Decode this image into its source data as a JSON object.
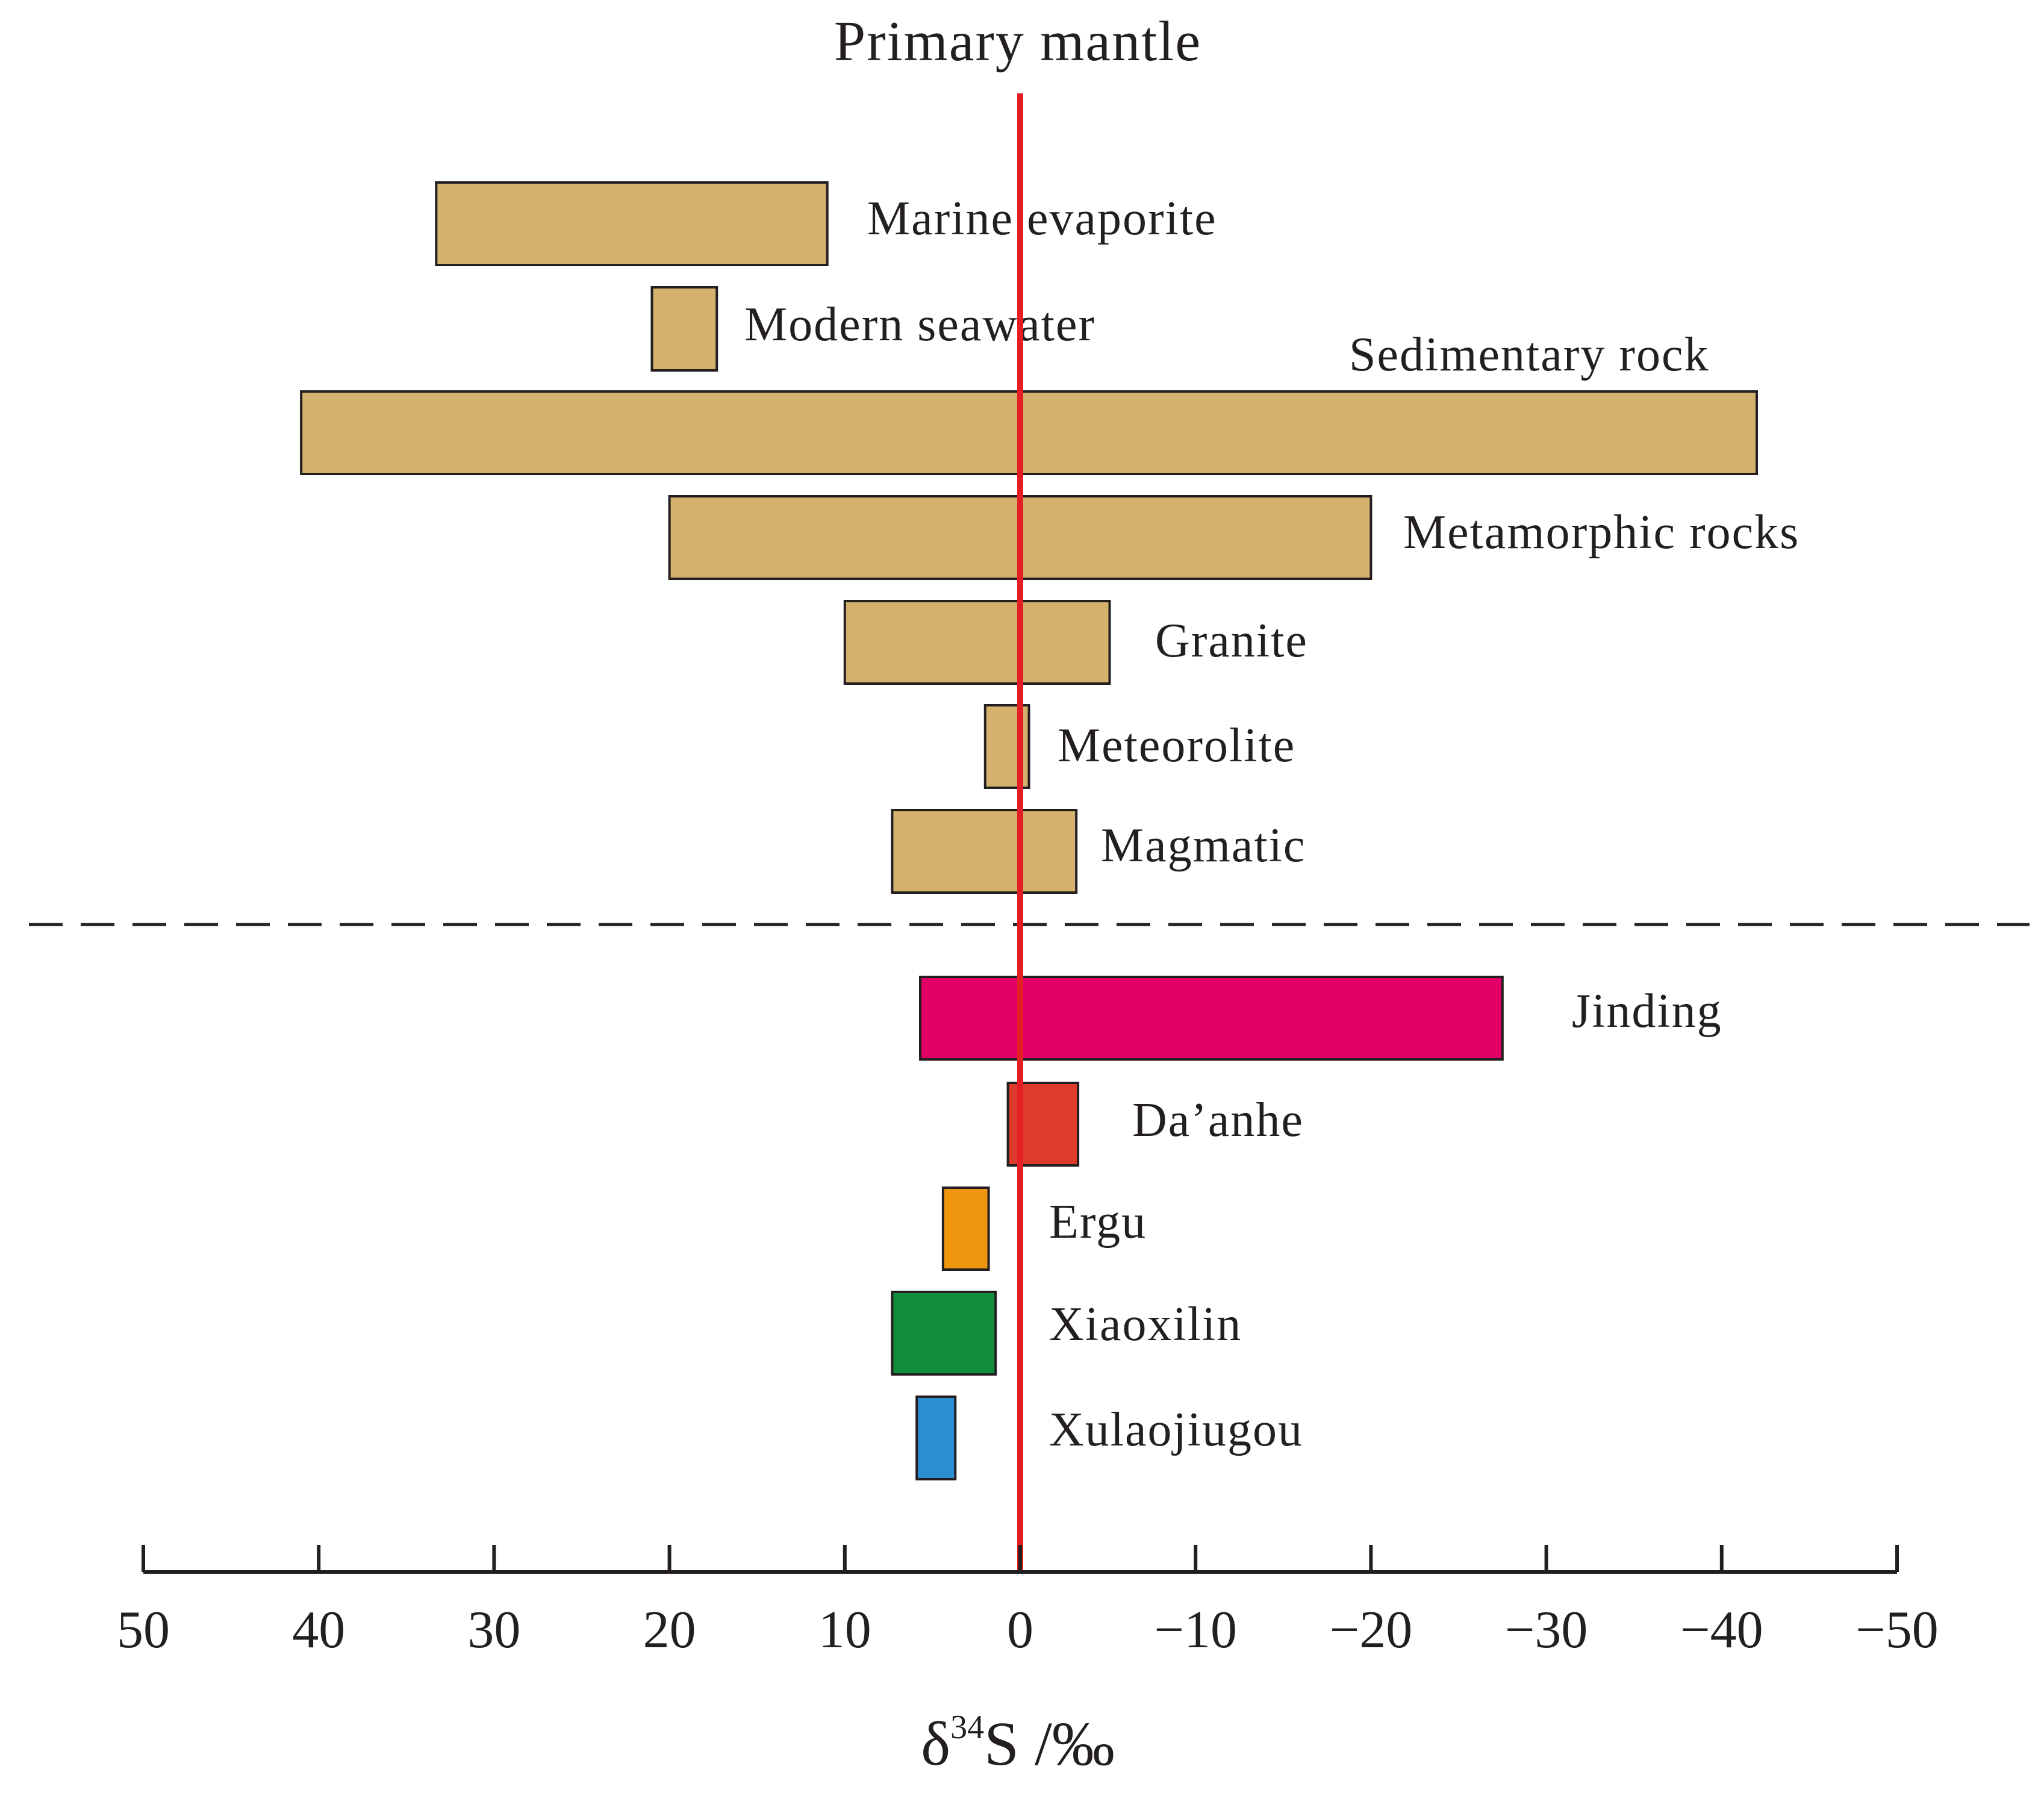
{
  "chart_data": {
    "type": "range-bar",
    "title": "Primary mantle",
    "xlabel": "δ34S /‰",
    "xlabel_parts": {
      "base": "δ",
      "superscript": "34",
      "rest": "S /‰"
    },
    "x_range": [
      50,
      -50
    ],
    "x_reversed": true,
    "x_ticks": [
      50,
      40,
      30,
      20,
      10,
      0,
      -10,
      -20,
      -30,
      -40,
      -50
    ],
    "x_tick_labels": [
      "50",
      "40",
      "30",
      "20",
      "10",
      "0",
      "−10",
      "−20",
      "−30",
      "−40",
      "−50"
    ],
    "reference_line": {
      "x": 0,
      "color": "#e31e24"
    },
    "separator": "dashed line between reference sources and deposits",
    "reference_sources": [
      {
        "name": "Marine evaporite",
        "min": 11,
        "max": 33.3,
        "color": "#d4b16d"
      },
      {
        "name": "Modern seawater",
        "min": 17.3,
        "max": 21,
        "color": "#d4b16d"
      },
      {
        "name": "Sedimentary rock",
        "min": -42,
        "max": 41,
        "color": "#d4b16d"
      },
      {
        "name": "Metamorphic rocks",
        "min": -20,
        "max": 20,
        "color": "#d4b16d"
      },
      {
        "name": "Granite",
        "min": -5.1,
        "max": 10,
        "color": "#d4b16d"
      },
      {
        "name": "Meteorolite",
        "min": -0.5,
        "max": 2,
        "color": "#d4b16d"
      },
      {
        "name": "Magmatic",
        "min": -3.2,
        "max": 7.3,
        "color": "#d4b16d"
      }
    ],
    "deposits": [
      {
        "name": "Jinding",
        "min": -27.5,
        "max": 5.7,
        "color": "#e20066"
      },
      {
        "name": "Da’anhe",
        "min": -3.3,
        "max": 0.7,
        "color": "#dd3c2c"
      },
      {
        "name": "Ergu",
        "min": 1.8,
        "max": 4.4,
        "color": "#f0960e"
      },
      {
        "name": "Xiaoxilin",
        "min": 1.4,
        "max": 7.3,
        "color": "#118d3d"
      },
      {
        "name": "Xulaojiugou",
        "min": 3.7,
        "max": 5.9,
        "color": "#2b8ed3"
      }
    ]
  }
}
